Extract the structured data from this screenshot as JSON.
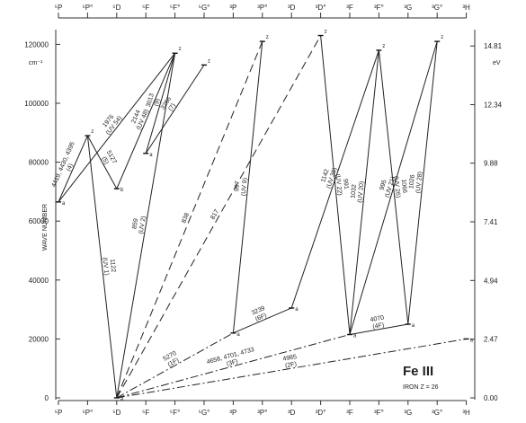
{
  "diagram": {
    "title": "Fe III",
    "subtitle": "IRON  Z = 26",
    "y_axis_label": "WAVE NUMBER",
    "left_unit": "cm⁻¹",
    "right_unit": "eV",
    "terms": [
      {
        "id": "5P",
        "label": "⁵P"
      },
      {
        "id": "5Po",
        "label": "⁵P°"
      },
      {
        "id": "5D",
        "label": "⁵D"
      },
      {
        "id": "5F",
        "label": "⁵F"
      },
      {
        "id": "5Fo",
        "label": "⁵F°"
      },
      {
        "id": "5Go",
        "label": "⁵G°"
      },
      {
        "id": "3P",
        "label": "³P"
      },
      {
        "id": "3Po",
        "label": "³P°"
      },
      {
        "id": "3D",
        "label": "³D"
      },
      {
        "id": "3Do",
        "label": "³D°"
      },
      {
        "id": "3F",
        "label": "³F"
      },
      {
        "id": "3Fo",
        "label": "³F°"
      },
      {
        "id": "3G",
        "label": "³G"
      },
      {
        "id": "3Go",
        "label": "³G°"
      },
      {
        "id": "3H",
        "label": "³H"
      }
    ],
    "left_ticks": [
      {
        "value": 0,
        "label": "0"
      },
      {
        "value": 20000,
        "label": "20000"
      },
      {
        "value": 40000,
        "label": "40000"
      },
      {
        "value": 60000,
        "label": "60000"
      },
      {
        "value": 80000,
        "label": "80000"
      },
      {
        "value": 100000,
        "label": "100000"
      },
      {
        "value": 120000,
        "label": "120000"
      }
    ],
    "right_ticks": [
      {
        "value": 0,
        "label": "0.00"
      },
      {
        "value": 2.47,
        "label": "2.47"
      },
      {
        "value": 4.94,
        "label": "4.94"
      },
      {
        "value": 7.41,
        "label": "7.41"
      },
      {
        "value": 9.88,
        "label": "9.88"
      },
      {
        "value": 12.34,
        "label": "12.34"
      },
      {
        "value": 14.81,
        "label": "14.81"
      }
    ],
    "levels": [
      {
        "term": "5D",
        "energy": 0,
        "label": "a"
      },
      {
        "term": "5P",
        "energy": 66500,
        "label": "a"
      },
      {
        "term": "5Po",
        "energy": 89000,
        "label": "z"
      },
      {
        "term": "5D",
        "energy": 71000,
        "label": "b"
      },
      {
        "term": "5F",
        "energy": 83000,
        "label": "a"
      },
      {
        "term": "5Fo",
        "energy": 117000,
        "label": "z"
      },
      {
        "term": "5Go",
        "energy": 113000,
        "label": "z"
      },
      {
        "term": "3P",
        "energy": 22000,
        "label": "a"
      },
      {
        "term": "3Po",
        "energy": 121000,
        "label": "z"
      },
      {
        "term": "3D",
        "energy": 30500,
        "label": "a"
      },
      {
        "term": "3Do",
        "energy": 123000,
        "label": "z"
      },
      {
        "term": "3F",
        "energy": 21500,
        "label": "a"
      },
      {
        "term": "3Fo",
        "energy": 118000,
        "label": "z"
      },
      {
        "term": "3G",
        "energy": 25000,
        "label": "a"
      },
      {
        "term": "3Go",
        "energy": 121000,
        "label": "z"
      },
      {
        "term": "3H",
        "energy": 20000,
        "label": "a"
      }
    ],
    "transitions": [
      {
        "from": [
          "5D",
          0
        ],
        "to": [
          "5Po",
          89000
        ],
        "style": "solid",
        "label": "1122\n(UV 1)"
      },
      {
        "from": [
          "5D",
          0
        ],
        "to": [
          "5Fo",
          117000
        ],
        "style": "solid",
        "label": "859\n(UV 2)"
      },
      {
        "from": [
          "5D",
          0
        ],
        "to": [
          "3Po",
          121000
        ],
        "style": "dash",
        "label": "838"
      },
      {
        "from": [
          "5D",
          0
        ],
        "to": [
          "3Do",
          123000
        ],
        "style": "dash",
        "label": "817"
      },
      {
        "from": [
          "5D",
          0
        ],
        "to": [
          "3P",
          22000
        ],
        "style": "dashdot",
        "label": "5270\n(1F)"
      },
      {
        "from": [
          "5D",
          0
        ],
        "to": [
          "3F",
          21500
        ],
        "style": "dashdot",
        "label": "4658, 4701, 4733\n(3F)"
      },
      {
        "from": [
          "5D",
          0
        ],
        "to": [
          "3H",
          20000
        ],
        "style": "dashdot",
        "label": "4985\n(2F)"
      },
      {
        "from": [
          "5P",
          66500
        ],
        "to": [
          "5Po",
          89000
        ],
        "style": "solid",
        "label": "4419, 4430, 4395\n(4)"
      },
      {
        "from": [
          "5Po",
          89000
        ],
        "to": [
          "5D",
          71000
        ],
        "style": "solid",
        "label": "5127\n(5)"
      },
      {
        "from": [
          "5P",
          66500
        ],
        "to": [
          "5Fo",
          117000
        ],
        "style": "solid",
        "label": "1976\n(UV 54)"
      },
      {
        "from": [
          "5D",
          71000
        ],
        "to": [
          "5Fo",
          117000
        ],
        "style": "solid",
        "label": "2144\n(UV 48)"
      },
      {
        "from": [
          "5F",
          83000
        ],
        "to": [
          "5Fo",
          117000
        ],
        "style": "solid",
        "label": "3013\n(9)"
      },
      {
        "from": [
          "5F",
          83000
        ],
        "to": [
          "5Go",
          113000
        ],
        "style": "solid",
        "label": "3266\n(7)"
      },
      {
        "from": [
          "3P",
          22000
        ],
        "to": [
          "3Po",
          121000
        ],
        "style": "solid",
        "label": "997\n(UV 9)"
      },
      {
        "from": [
          "3P",
          22000
        ],
        "to": [
          "3D",
          30500
        ],
        "style": "solid",
        "label": "3239\n(6F)"
      },
      {
        "from": [
          "3D",
          30500
        ],
        "to": [
          "3Fo",
          118000
        ],
        "style": "solid",
        "label": "1142\n(UV 39)"
      },
      {
        "from": [
          "3Do",
          123000
        ],
        "to": [
          "3F",
          21500
        ],
        "style": "solid",
        "label": "991\n(UV 22)"
      },
      {
        "from": [
          "3F",
          21500
        ],
        "to": [
          "3Fo",
          118000
        ],
        "style": "solid",
        "label": "1032\n(UV 20)"
      },
      {
        "from": [
          "3Fo",
          118000
        ],
        "to": [
          "3G",
          25000
        ],
        "style": "solid",
        "label": "1066\n(UV 26)"
      },
      {
        "from": [
          "3F",
          21500
        ],
        "to": [
          "3Go",
          121000
        ],
        "style": "solid",
        "label": "995\n(UV 21)"
      },
      {
        "from": [
          "3G",
          25000
        ],
        "to": [
          "3Go",
          121000
        ],
        "style": "solid",
        "label": "1026\n(UV 28)"
      },
      {
        "from": [
          "3F",
          21500
        ],
        "to": [
          "3G",
          25000
        ],
        "style": "solid",
        "label": "4070\n(4F)"
      }
    ]
  }
}
